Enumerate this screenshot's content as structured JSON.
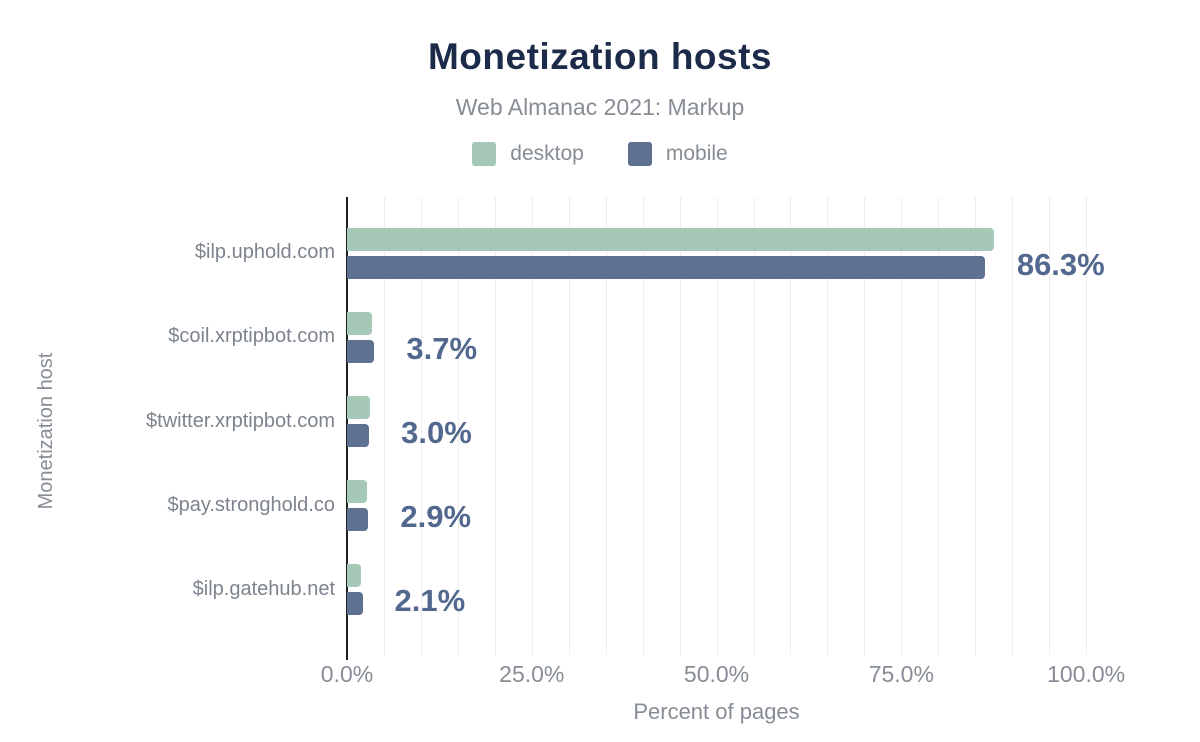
{
  "header": {
    "title": "Monetization hosts",
    "subtitle": "Web Almanac 2021: Markup"
  },
  "legend": [
    {
      "label": "desktop",
      "color": "#a5c9b6"
    },
    {
      "label": "mobile",
      "color": "#5e7190"
    }
  ],
  "chart_data": {
    "type": "bar",
    "orientation": "horizontal",
    "title": "Monetization hosts",
    "subtitle": "Web Almanac 2021: Markup",
    "categories": [
      "$ilp.uphold.com",
      "$coil.xrptipbot.com",
      "$twitter.xrptipbot.com",
      "$pay.stronghold.co",
      "$ilp.gatehub.net"
    ],
    "series": [
      {
        "name": "desktop",
        "color": "#a5c9b6",
        "values": [
          87.6,
          3.4,
          3.1,
          2.7,
          1.9
        ]
      },
      {
        "name": "mobile",
        "color": "#5e7190",
        "values": [
          86.3,
          3.7,
          3.0,
          2.9,
          2.1
        ]
      }
    ],
    "data_labels": [
      "86.3%",
      "3.7%",
      "3.0%",
      "2.9%",
      "2.1%"
    ],
    "xlabel": "Percent of pages",
    "ylabel": "Monetization host",
    "x_ticks": [
      {
        "label": "0.0%",
        "value": 0
      },
      {
        "label": "25.0%",
        "value": 25
      },
      {
        "label": "50.0%",
        "value": 50
      },
      {
        "label": "75.0%",
        "value": 75
      },
      {
        "label": "100.0%",
        "value": 100
      }
    ],
    "xlim": [
      0,
      110
    ],
    "gridline_step": 5,
    "grid": true,
    "legend_position": "top"
  },
  "colors": {
    "background": "#ffffff",
    "title": "#1c2b4a",
    "muted_text": "#878d95",
    "category_text": "#7d848e",
    "data_label": "#53688e",
    "gridline": "#ededed",
    "axis_line": "#1f1f1f",
    "desktop": "#a5c9b6",
    "mobile": "#5e7190"
  }
}
